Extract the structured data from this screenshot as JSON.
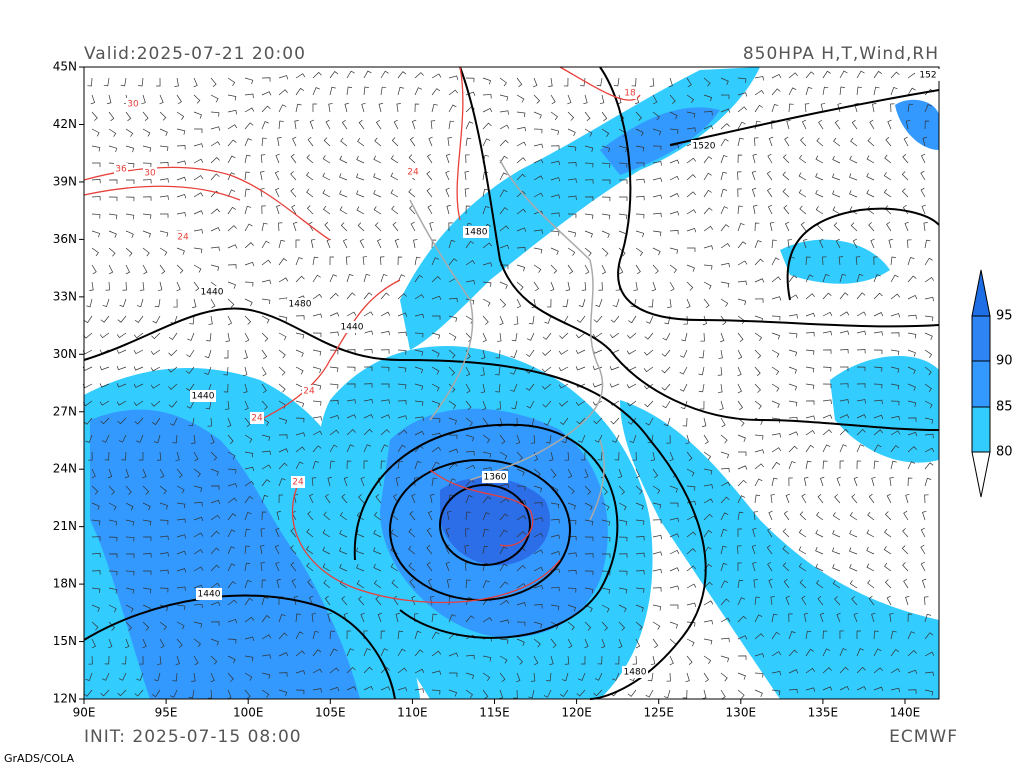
{
  "header": {
    "valid": "Valid:2025-07-21 20:00",
    "product": "850HPA H,T,Wind,RH"
  },
  "footer": {
    "init": "INIT: 2025-07-15 08:00",
    "model": "ECMWF",
    "credit": "GrADS/COLA"
  },
  "map": {
    "lat_labels": [
      "12N",
      "15N",
      "18N",
      "21N",
      "24N",
      "27N",
      "30N",
      "33N",
      "36N",
      "39N",
      "42N",
      "45N"
    ],
    "lon_labels": [
      "90E",
      "95E",
      "100E",
      "105E",
      "110E",
      "115E",
      "120E",
      "125E",
      "130E",
      "135E",
      "140E"
    ],
    "height_labels": [
      "1360",
      "1440",
      "1440",
      "1440",
      "1440",
      "1480",
      "1480",
      "1480",
      "1520",
      "152"
    ],
    "temp_labels": [
      "24",
      "24",
      "24",
      "24",
      "24",
      "18",
      "30",
      "36",
      "30"
    ]
  },
  "colorbar": {
    "levels": [
      "80",
      "85",
      "90",
      "95"
    ]
  }
}
